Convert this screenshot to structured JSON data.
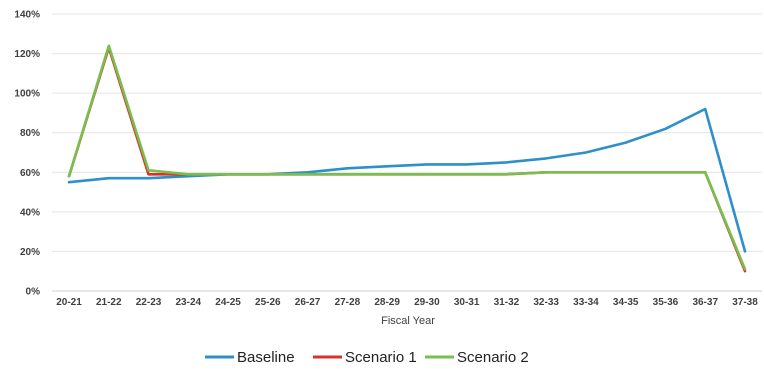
{
  "chart_data": {
    "type": "line",
    "title": "",
    "xlabel": "Fiscal Year",
    "ylabel": "",
    "categories": [
      "20-21",
      "21-22",
      "22-23",
      "23-24",
      "24-25",
      "25-26",
      "26-27",
      "27-28",
      "28-29",
      "29-30",
      "30-31",
      "31-32",
      "32-33",
      "33-34",
      "34-35",
      "35-36",
      "36-37",
      "37-38"
    ],
    "ylim": [
      0,
      140
    ],
    "yticks": [
      "0%",
      "20%",
      "40%",
      "60%",
      "80%",
      "100%",
      "120%",
      "140%"
    ],
    "grid": true,
    "legend_position": "bottom",
    "series": [
      {
        "name": "Baseline",
        "color": "#2e8fcb",
        "values": [
          55,
          57,
          57,
          58,
          59,
          59,
          60,
          62,
          63,
          64,
          64,
          65,
          67,
          70,
          75,
          82,
          92,
          20
        ]
      },
      {
        "name": "Scenario 1",
        "color": "#d9322b",
        "values": [
          58,
          123,
          59,
          59,
          59,
          59,
          59,
          59,
          59,
          59,
          59,
          59,
          60,
          60,
          60,
          60,
          60,
          10
        ]
      },
      {
        "name": "Scenario 2",
        "color": "#79bf4f",
        "values": [
          58,
          124,
          61,
          59,
          59,
          59,
          59,
          59,
          59,
          59,
          59,
          59,
          60,
          60,
          60,
          60,
          60,
          11
        ]
      }
    ]
  }
}
